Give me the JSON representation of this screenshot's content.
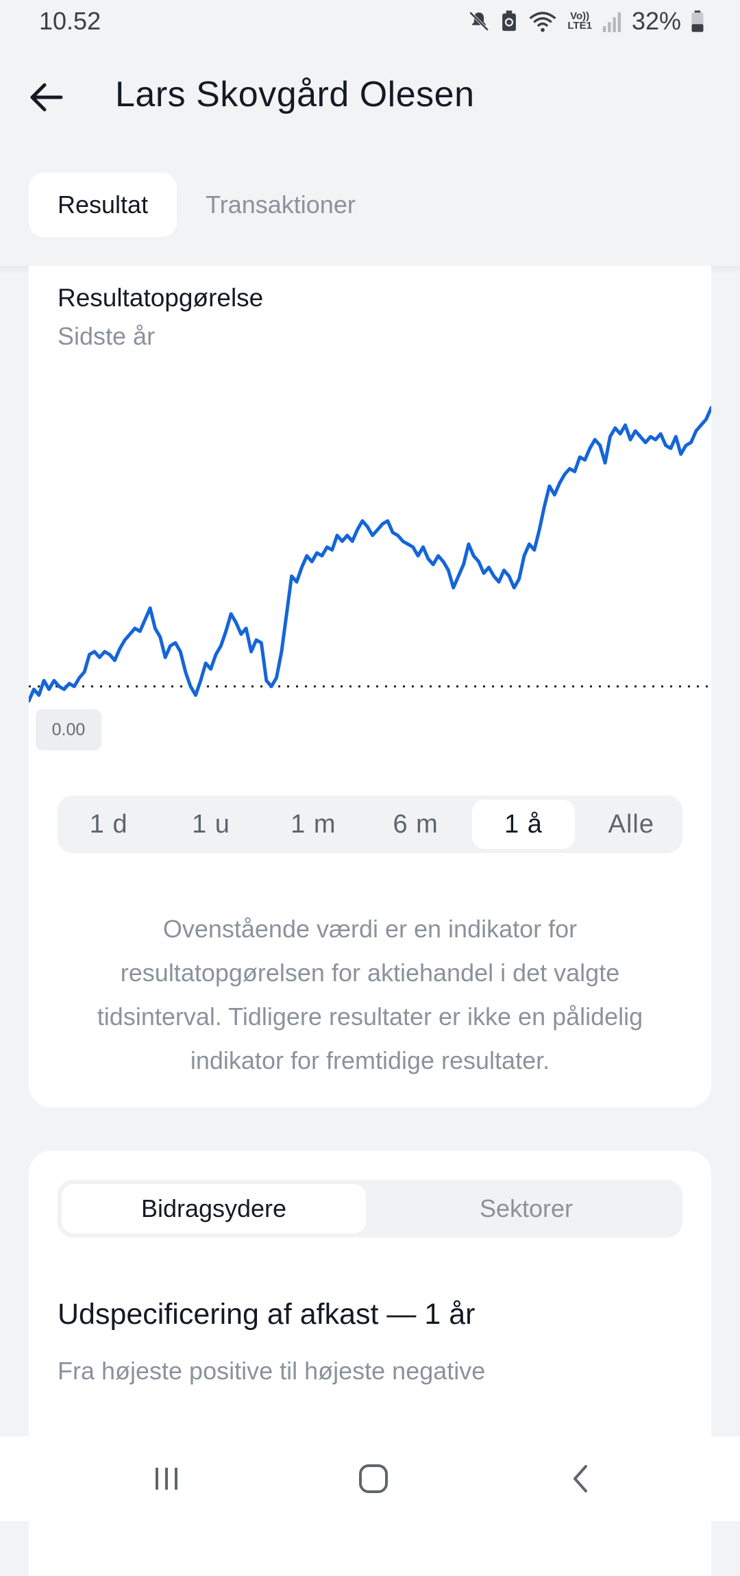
{
  "status_bar": {
    "time": "10.52",
    "battery": "32%",
    "icons": [
      "mute-icon",
      "data-saver-icon",
      "wifi-icon",
      "volte-icon",
      "signal-icon",
      "battery-icon"
    ],
    "volte_label_top": "Vo))",
    "volte_label_bottom": "LTE1"
  },
  "header": {
    "title": "Lars Skovgård Olesen",
    "back_icon": "arrow-left-icon"
  },
  "tabs": [
    {
      "label": "Resultat",
      "active": true
    },
    {
      "label": "Transaktioner",
      "active": false
    }
  ],
  "result_card": {
    "title": "Resultatopgørelse",
    "subtitle": "Sidste år",
    "baseline_label": "0.00",
    "line_color": "#1565d8",
    "periods": [
      {
        "label": "1 d",
        "active": false
      },
      {
        "label": "1 u",
        "active": false
      },
      {
        "label": "1 m",
        "active": false
      },
      {
        "label": "6 m",
        "active": false
      },
      {
        "label": "1 å",
        "active": true
      },
      {
        "label": "Alle",
        "active": false
      }
    ],
    "disclaimer": "Ovenstående værdi er en indikator for resultatopgørelsen for aktiehandel i det valgte tidsinterval. Tidligere resultater er ikke en pålidelig indikator for fremtidige resultater."
  },
  "chart_data": {
    "type": "line",
    "baseline": 0,
    "y_range_relative": [
      -0.05,
      1.0
    ],
    "series": [
      {
        "values": [
          -0.05,
          -0.01,
          -0.03,
          0.02,
          -0.01,
          0.02,
          0.0,
          -0.01,
          0.01,
          0.0,
          0.03,
          0.05,
          0.11,
          0.12,
          0.1,
          0.12,
          0.11,
          0.09,
          0.13,
          0.16,
          0.18,
          0.2,
          0.19,
          0.23,
          0.27,
          0.2,
          0.17,
          0.1,
          0.14,
          0.15,
          0.12,
          0.05,
          0.0,
          -0.03,
          0.02,
          0.08,
          0.06,
          0.11,
          0.14,
          0.19,
          0.25,
          0.22,
          0.18,
          0.2,
          0.12,
          0.16,
          0.15,
          0.02,
          0.0,
          0.03,
          0.12,
          0.25,
          0.38,
          0.36,
          0.41,
          0.45,
          0.43,
          0.46,
          0.45,
          0.48,
          0.47,
          0.52,
          0.5,
          0.52,
          0.5,
          0.54,
          0.57,
          0.55,
          0.52,
          0.54,
          0.56,
          0.57,
          0.53,
          0.52,
          0.5,
          0.49,
          0.48,
          0.45,
          0.48,
          0.44,
          0.42,
          0.45,
          0.43,
          0.4,
          0.34,
          0.38,
          0.42,
          0.49,
          0.45,
          0.43,
          0.39,
          0.41,
          0.38,
          0.36,
          0.4,
          0.38,
          0.34,
          0.37,
          0.45,
          0.49,
          0.47,
          0.54,
          0.62,
          0.69,
          0.66,
          0.7,
          0.73,
          0.75,
          0.74,
          0.79,
          0.78,
          0.82,
          0.85,
          0.83,
          0.77,
          0.86,
          0.89,
          0.87,
          0.9,
          0.85,
          0.88,
          0.86,
          0.84,
          0.86,
          0.85,
          0.87,
          0.83,
          0.82,
          0.86,
          0.8,
          0.83,
          0.84,
          0.88,
          0.9,
          0.92,
          0.96
        ]
      }
    ]
  },
  "breakdown_card": {
    "segments": [
      {
        "label": "Bidragsydere",
        "active": true
      },
      {
        "label": "Sektorer",
        "active": false
      }
    ],
    "title": "Udspecificering af afkast — 1 år",
    "subtitle": "Fra højeste positive til højeste negative"
  },
  "nav_bar": {
    "recents_icon": "recents-icon",
    "home_icon": "home-icon",
    "back_icon": "back-chevron-icon"
  }
}
